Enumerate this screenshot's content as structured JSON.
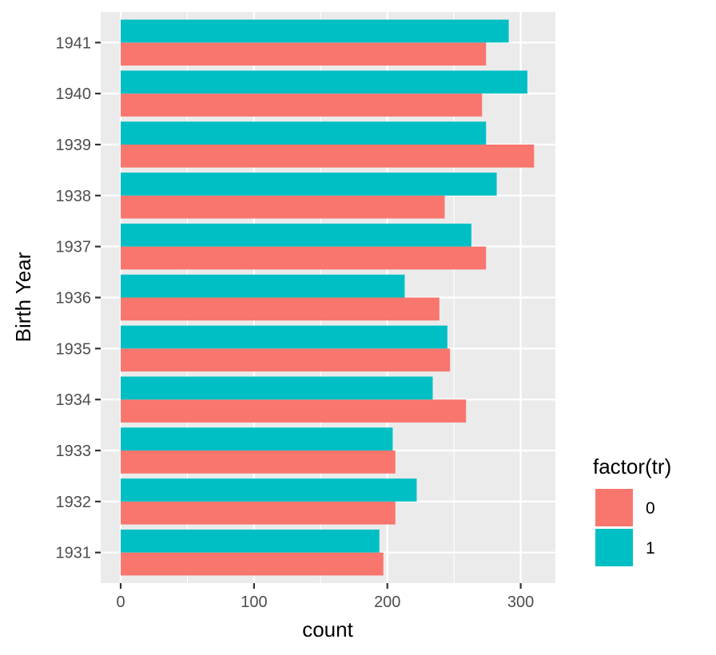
{
  "chart_data": {
    "type": "bar",
    "orientation": "horizontal",
    "xlabel": "count",
    "ylabel": "Birth Year",
    "categories": [
      "1931",
      "1932",
      "1933",
      "1934",
      "1935",
      "1936",
      "1937",
      "1938",
      "1939",
      "1940",
      "1941"
    ],
    "series": [
      {
        "name": "0",
        "color": "#F8766D",
        "values": [
          197,
          206,
          206,
          259,
          247,
          239,
          274,
          243,
          310,
          271,
          274
        ]
      },
      {
        "name": "1",
        "color": "#00BFC4",
        "values": [
          194,
          222,
          204,
          234,
          245,
          213,
          263,
          282,
          274,
          305,
          291
        ]
      }
    ],
    "xlim": [
      -15,
      326
    ],
    "xticks": [
      "0",
      "100",
      "200",
      "300"
    ],
    "xtick_values": [
      0,
      100,
      200,
      300
    ],
    "x_minor_values": [
      50,
      150,
      250
    ],
    "grid": true,
    "panel_background": "#EBEBEB",
    "legend": {
      "title": "factor(tr)",
      "position": "right",
      "entries": [
        "0",
        "1"
      ]
    }
  }
}
